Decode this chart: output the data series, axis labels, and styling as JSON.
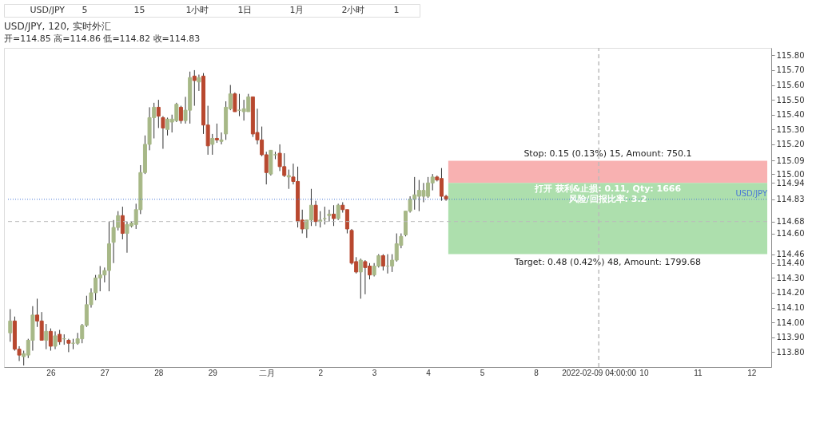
{
  "chart_data": {
    "type": "candlestick",
    "title": "USD/JPY, 120, 实时外汇",
    "subtitle": "开=114.85 高=114.86 低=114.82 收=114.83",
    "categories": [
      null,
      null,
      null,
      null,
      null,
      null,
      null,
      null,
      null,
      "26",
      null,
      null,
      null,
      null,
      null,
      null,
      null,
      null,
      null,
      null,
      null,
      "27",
      null,
      null,
      null,
      null,
      null,
      null,
      null,
      null,
      null,
      null,
      null,
      "28",
      null,
      null,
      null,
      null,
      null,
      null,
      null,
      null,
      null,
      null,
      null,
      "29",
      null,
      null,
      null,
      null,
      null,
      null,
      null,
      null,
      null,
      null,
      null,
      "二月",
      null,
      null,
      null,
      null,
      null,
      null,
      null,
      null,
      null,
      null,
      null,
      "2",
      null,
      null,
      null,
      null,
      null,
      null,
      null,
      null,
      null,
      null,
      null,
      "3",
      null,
      null,
      null,
      null,
      null,
      null,
      null,
      null,
      null,
      null,
      null,
      "4",
      null,
      null,
      null,
      null,
      null,
      null,
      null,
      null,
      null,
      null,
      null,
      "5",
      null,
      null,
      null,
      null,
      null,
      null,
      null,
      null,
      null,
      null,
      null,
      "8",
      null,
      null,
      null,
      null,
      null,
      null,
      null,
      null,
      null,
      null,
      null,
      null,
      null,
      "2022-02-09 04:00:00",
      null,
      null,
      null,
      null,
      null,
      null,
      null,
      null,
      null,
      "10",
      null,
      null,
      null,
      null,
      null,
      null,
      null,
      null,
      null,
      null,
      null,
      "11",
      null,
      null,
      null,
      null,
      null,
      null,
      null,
      null,
      null,
      null,
      null,
      "12",
      null,
      null,
      null
    ],
    "ohlc": [
      [
        113.93,
        114.09,
        113.87,
        114.01
      ],
      [
        114.01,
        114.04,
        113.81,
        113.82
      ],
      [
        113.82,
        113.84,
        113.74,
        113.78
      ],
      [
        113.77,
        113.81,
        113.71,
        113.79
      ],
      [
        113.78,
        113.89,
        113.76,
        113.88
      ],
      [
        113.88,
        114.11,
        113.81,
        114.05
      ],
      [
        114.05,
        114.16,
        113.97,
        114.01
      ],
      [
        114.01,
        114.07,
        113.88,
        113.88
      ],
      [
        113.88,
        113.99,
        113.82,
        113.94
      ],
      [
        113.94,
        113.96,
        113.81,
        113.84
      ],
      [
        113.84,
        113.94,
        113.82,
        113.91
      ],
      [
        113.92,
        113.95,
        113.85,
        113.87
      ],
      [
        113.89,
        113.92,
        113.85,
        113.89
      ],
      [
        113.88,
        113.89,
        113.8,
        113.86
      ],
      [
        113.86,
        113.89,
        113.82,
        113.86
      ],
      [
        113.86,
        113.93,
        113.85,
        113.89
      ],
      [
        113.89,
        113.99,
        113.86,
        113.98
      ],
      [
        113.98,
        114.18,
        113.97,
        114.12
      ],
      [
        114.12,
        114.23,
        114.1,
        114.2
      ],
      [
        114.2,
        114.32,
        114.15,
        114.3
      ],
      [
        114.3,
        114.38,
        114.21,
        114.32
      ],
      [
        114.32,
        114.37,
        114.27,
        114.35
      ],
      [
        114.35,
        114.68,
        114.21,
        114.53
      ],
      [
        114.54,
        114.69,
        114.4,
        114.64
      ],
      [
        114.64,
        114.75,
        114.62,
        114.72
      ],
      [
        114.72,
        114.78,
        114.56,
        114.6
      ],
      [
        114.6,
        114.68,
        114.47,
        114.66
      ],
      [
        114.65,
        114.68,
        114.64,
        114.67
      ],
      [
        114.66,
        114.8,
        114.63,
        114.76
      ],
      [
        114.76,
        115.06,
        114.73,
        115.01
      ],
      [
        115.01,
        115.26,
        115.0,
        115.2
      ],
      [
        115.2,
        115.45,
        115.16,
        115.38
      ],
      [
        115.38,
        115.48,
        115.24,
        115.45
      ],
      [
        115.45,
        115.5,
        115.31,
        115.39
      ],
      [
        115.38,
        115.39,
        115.17,
        115.31
      ],
      [
        115.3,
        115.38,
        115.26,
        115.37
      ],
      [
        115.35,
        115.4,
        115.28,
        115.37
      ],
      [
        115.36,
        115.48,
        115.35,
        115.47
      ],
      [
        115.45,
        115.46,
        115.34,
        115.36
      ],
      [
        115.36,
        115.52,
        115.34,
        115.43
      ],
      [
        115.43,
        115.69,
        115.34,
        115.65
      ],
      [
        115.66,
        115.7,
        115.46,
        115.63
      ],
      [
        115.62,
        115.67,
        115.56,
        115.65
      ],
      [
        115.66,
        115.68,
        115.27,
        115.33
      ],
      [
        115.33,
        115.46,
        115.13,
        115.19
      ],
      [
        115.2,
        115.27,
        115.13,
        115.24
      ],
      [
        115.24,
        115.34,
        115.21,
        115.23
      ],
      [
        115.22,
        115.28,
        115.2,
        115.23
      ],
      [
        115.27,
        115.49,
        115.23,
        115.45
      ],
      [
        115.44,
        115.6,
        115.43,
        115.54
      ],
      [
        115.54,
        115.55,
        115.42,
        115.42
      ],
      [
        115.43,
        115.54,
        115.39,
        115.43
      ],
      [
        115.42,
        115.5,
        115.36,
        115.44
      ],
      [
        115.42,
        115.54,
        115.42,
        115.52
      ],
      [
        115.52,
        115.52,
        115.25,
        115.27
      ],
      [
        115.28,
        115.44,
        115.2,
        115.23
      ],
      [
        115.23,
        115.32,
        115.12,
        115.13
      ],
      [
        115.13,
        115.15,
        114.93,
        115.01
      ],
      [
        115.0,
        115.16,
        114.99,
        115.16
      ],
      [
        115.13,
        115.15,
        115.1,
        115.13
      ],
      [
        115.14,
        115.2,
        115.02,
        115.05
      ],
      [
        115.05,
        115.14,
        114.98,
        114.99
      ],
      [
        114.98,
        115.03,
        114.9,
        114.99
      ],
      [
        114.98,
        115.07,
        114.93,
        114.95
      ],
      [
        114.95,
        115.05,
        114.64,
        114.68
      ],
      [
        114.69,
        114.76,
        114.6,
        114.63
      ],
      [
        114.63,
        114.69,
        114.57,
        114.69
      ],
      [
        114.69,
        114.9,
        114.65,
        114.79
      ],
      [
        114.79,
        114.82,
        114.65,
        114.68
      ],
      [
        114.68,
        114.75,
        114.64,
        114.69
      ],
      [
        114.7,
        114.78,
        114.66,
        114.7
      ],
      [
        114.72,
        114.76,
        114.68,
        114.73
      ],
      [
        114.73,
        114.79,
        114.65,
        114.7
      ],
      [
        114.7,
        114.8,
        114.69,
        114.79
      ],
      [
        114.79,
        114.81,
        114.74,
        114.76
      ],
      [
        114.76,
        114.76,
        114.6,
        114.63
      ],
      [
        114.62,
        114.63,
        114.39,
        114.4
      ],
      [
        114.41,
        114.44,
        114.33,
        114.34
      ],
      [
        114.34,
        114.43,
        114.16,
        114.42
      ],
      [
        114.41,
        114.42,
        114.19,
        114.37
      ],
      [
        114.38,
        114.4,
        114.29,
        114.32
      ],
      [
        114.32,
        114.4,
        114.31,
        114.38
      ],
      [
        114.38,
        114.46,
        114.37,
        114.45
      ],
      [
        114.45,
        114.46,
        114.35,
        114.38
      ],
      [
        114.38,
        114.46,
        114.33,
        114.38
      ],
      [
        114.38,
        114.46,
        114.34,
        114.42
      ],
      [
        114.42,
        114.6,
        114.41,
        114.53
      ],
      [
        114.52,
        114.6,
        114.5,
        114.58
      ],
      [
        114.59,
        114.75,
        114.58,
        114.75
      ],
      [
        114.75,
        114.85,
        114.74,
        114.83
      ],
      [
        114.83,
        114.98,
        114.76,
        114.86
      ],
      [
        114.85,
        114.96,
        114.75,
        114.89
      ],
      [
        114.85,
        114.94,
        114.81,
        114.89
      ],
      [
        114.85,
        114.98,
        114.84,
        114.94
      ],
      [
        114.94,
        115.0,
        114.89,
        114.98
      ],
      [
        114.98,
        114.99,
        114.95,
        114.96
      ],
      [
        114.97,
        115.04,
        114.82,
        114.85
      ],
      [
        114.85,
        114.86,
        114.82,
        114.83
      ],
      null,
      null,
      null,
      null,
      null,
      null,
      null,
      null,
      null,
      null,
      null,
      null,
      null,
      null,
      null,
      null,
      null,
      null,
      null,
      null,
      null,
      null,
      null,
      null,
      null,
      null,
      null,
      null,
      null,
      null,
      null,
      null,
      null,
      null,
      null,
      null,
      null,
      null,
      null,
      null,
      null,
      null,
      null,
      null,
      null,
      null,
      null,
      null,
      null,
      null,
      null,
      null,
      null,
      null,
      null,
      null,
      null,
      null,
      null,
      null,
      null,
      null,
      null,
      null,
      null,
      null,
      null,
      null,
      null,
      null,
      null
    ],
    "colors": [
      "#a7b887",
      "#b8482f",
      "#b8482f",
      "#a7b887",
      "#a7b887",
      "#a7b887",
      "#b8482f",
      "#b8482f",
      "#a7b887",
      "#b8482f",
      "#a7b887",
      "#b8482f",
      "#a7b887",
      "#b8482f",
      "#a7b887",
      "#a7b887",
      "#a7b887",
      "#a7b887",
      "#a7b887",
      "#a7b887",
      "#a7b887",
      "#a7b887",
      "#a7b887",
      "#a7b887",
      "#a7b887",
      "#b8482f",
      "#a7b887",
      "#a7b887",
      "#a7b887",
      "#a7b887",
      "#a7b887",
      "#a7b887",
      "#a7b887",
      "#b8482f",
      "#b8482f",
      "#a7b887",
      "#a7b887",
      "#a7b887",
      "#b8482f",
      "#a7b887",
      "#a7b887",
      "#b8482f",
      "#a7b887",
      "#b8482f",
      "#b8482f",
      "#a7b887",
      "#b8482f",
      "#a7b887",
      "#a7b887",
      "#a7b887",
      "#b8482f",
      "#a7b887",
      "#a7b887",
      "#a7b887",
      "#b8482f",
      "#b8482f",
      "#b8482f",
      "#b8482f",
      "#a7b887",
      "#a7b887",
      "#b8482f",
      "#b8482f",
      "#a7b887",
      "#b8482f",
      "#b8482f",
      "#b8482f",
      "#a7b887",
      "#a7b887",
      "#b8482f",
      "#a7b887",
      "#a7b887",
      "#a7b887",
      "#b8482f",
      "#a7b887",
      "#b8482f",
      "#b8482f",
      "#b8482f",
      "#b8482f",
      "#a7b887",
      "#b8482f",
      "#b8482f",
      "#a7b887",
      "#a7b887",
      "#b8482f",
      "#a7b887",
      "#a7b887",
      "#a7b887",
      "#a7b887",
      "#a7b887",
      "#a7b887",
      "#a7b887",
      "#a7b887",
      "#a7b887",
      "#a7b887",
      "#a7b887",
      "#b8482f",
      "#b8482f",
      "#b8482f",
      null,
      null,
      null,
      null,
      null,
      null,
      null,
      null,
      null,
      null,
      null,
      null,
      null,
      null,
      null,
      null,
      null,
      null,
      null,
      null,
      null,
      null,
      null,
      null,
      null,
      null,
      null,
      null,
      null,
      null,
      null,
      null,
      null,
      null,
      null,
      null,
      null,
      null,
      null,
      null,
      null,
      null,
      null,
      null,
      null,
      null,
      null,
      null,
      null,
      null,
      null,
      null,
      null,
      null,
      null,
      null,
      null,
      null,
      null,
      null,
      null,
      null,
      null,
      null,
      null,
      null,
      null,
      null,
      null,
      null,
      null
    ],
    "ylim": [
      113.7,
      115.85
    ],
    "yticks": [
      {
        "value": 113.8,
        "label": "113.80"
      },
      {
        "value": 113.9,
        "label": "113.90"
      },
      {
        "value": 114.0,
        "label": "114.00"
      },
      {
        "value": 114.1,
        "label": "114.10"
      },
      {
        "value": 114.2,
        "label": "114.20"
      },
      {
        "value": 114.3,
        "label": "114.30"
      },
      {
        "value": 114.4,
        "label": "114.40"
      },
      114.46,
      {
        "value": 114.6,
        "label": "114.60"
      },
      114.68,
      114.83,
      114.94,
      {
        "value": 115.0,
        "label": "115.00"
      },
      115.09,
      {
        "value": 115.2,
        "label": "115.20"
      },
      {
        "value": 115.3,
        "label": "115.30"
      },
      {
        "value": 115.4,
        "label": "115.40"
      },
      {
        "value": 115.5,
        "label": "115.50"
      },
      {
        "value": 115.6,
        "label": "115.60"
      },
      {
        "value": 115.7,
        "label": "115.70"
      },
      {
        "value": 115.8,
        "label": "115.80"
      }
    ],
    "bands": [
      {
        "axis": "y",
        "from": 114.94,
        "to": 115.09,
        "label": "Stop: 0.15 (0.13%) 15, Amount: 750.1",
        "color": "#f7a8a8"
      },
      {
        "axis": "y",
        "from": 114.46,
        "to": 114.94,
        "label": "Target: 0.48 (0.42%) 48, Amount: 1799.68",
        "color": "#a4dba4"
      }
    ],
    "ref_lines": [
      {
        "axis": "y",
        "value": 114.83,
        "label": "USD/JPY",
        "color": "#4a78d6",
        "line_style": "dotted"
      },
      {
        "axis": "y",
        "value": 114.68,
        "color": "#bbbbbb",
        "line_style": "dashed"
      },
      {
        "axis": "x",
        "value": "2022-02-09 04:00:00",
        "color": "#bbbbbb",
        "line_style": "dashed"
      }
    ],
    "annotations": [
      "USD/JPY",
      "5",
      "15",
      "1小时",
      "1日",
      "1月",
      "2小时",
      "1",
      {
        "text": "打开 获利&止损: 0.11, Qty: 1666\n风险/回报比率: 3.2",
        "y": 114.94
      }
    ]
  }
}
